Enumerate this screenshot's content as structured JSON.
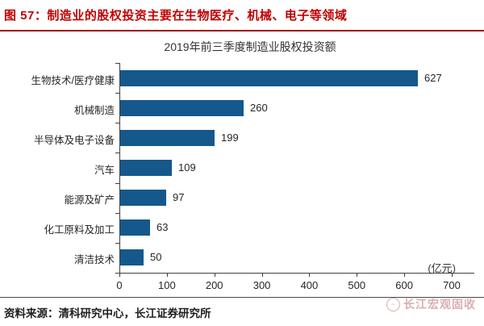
{
  "header": {
    "title": "图 57：制造业的股权投资主要在生物医疗、机械、电子等领域"
  },
  "chart_data": {
    "type": "bar",
    "orientation": "horizontal",
    "title": "2019年前三季度制造业股权投资额",
    "categories": [
      "生物技术/医疗健康",
      "机械制造",
      "半导体及电子设备",
      "汽车",
      "能源及矿产",
      "化工原料及加工",
      "清洁技术"
    ],
    "values": [
      627,
      260,
      199,
      109,
      97,
      63,
      50
    ],
    "x_ticks": [
      0,
      100,
      200,
      300,
      400,
      500,
      600,
      700
    ],
    "xlim": [
      0,
      700
    ],
    "unit_label": "(亿元)",
    "value_labels_shown": true,
    "grid": false,
    "legend": "none",
    "bar_color": "#15588c"
  },
  "footer": {
    "source": "资料来源：清科研究中心，长江证券研究所",
    "watermark": "长江宏观固收",
    "watermark_logo": "wave-circle-logo"
  },
  "colors": {
    "caption_red": "#c00000",
    "divider_red": "#a40000",
    "bar_blue": "#15588c",
    "axis_gray": "#404040",
    "text_dark": "#262626",
    "watermark_pink": "rgba(185,110,108,0.55)"
  }
}
